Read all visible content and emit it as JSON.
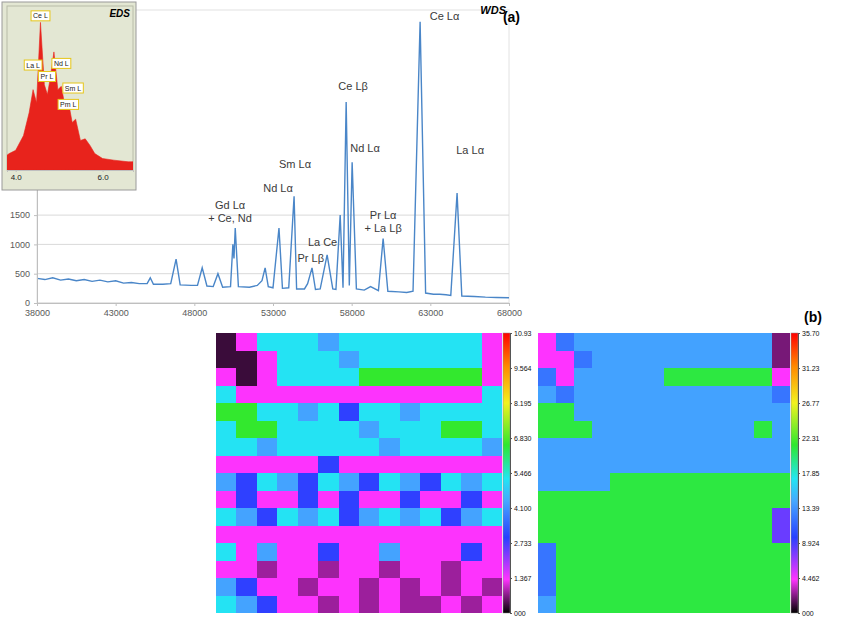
{
  "chart_data": [
    {
      "type": "line",
      "title": "WDS",
      "panel_label": "(a)",
      "x": [
        38000,
        38500,
        39000,
        39500,
        40000,
        40500,
        41000,
        41500,
        42000,
        42500,
        43000,
        43500,
        44000,
        44500,
        45000,
        45200,
        45400,
        46000,
        46500,
        46840,
        47100,
        47800,
        48200,
        48500,
        48800,
        49200,
        49500,
        49800,
        50300,
        50450,
        50520,
        50600,
        50800,
        51500,
        52000,
        52300,
        52500,
        52700,
        53000,
        53380,
        53600,
        54000,
        54340,
        54500,
        55000,
        55200,
        55480,
        55700,
        56000,
        56440,
        56800,
        57000,
        57270,
        57450,
        57650,
        57850,
        58030,
        58300,
        58800,
        59200,
        59700,
        60000,
        60300,
        61000,
        61500,
        61900,
        62350,
        62700,
        63200,
        63600,
        64000,
        64300,
        64700,
        65000,
        65800,
        66500,
        67200,
        68000
      ],
      "series": [
        {
          "color": "#4a86c8",
          "values": [
            420,
            400,
            430,
            390,
            410,
            380,
            400,
            370,
            390,
            360,
            380,
            340,
            350,
            330,
            330,
            430,
            320,
            320,
            330,
            750,
            310,
            300,
            300,
            600,
            290,
            280,
            500,
            270,
            280,
            1000,
            760,
            1280,
            280,
            270,
            300,
            380,
            600,
            280,
            260,
            1280,
            250,
            260,
            1820,
            240,
            240,
            330,
            600,
            230,
            240,
            820,
            240,
            230,
            1500,
            260,
            3430,
            300,
            2400,
            240,
            220,
            280,
            210,
            1100,
            200,
            190,
            180,
            200,
            4800,
            170,
            150,
            150,
            140,
            130,
            1875,
            120,
            110,
            100,
            95,
            90
          ]
        }
      ],
      "xlim": [
        38000,
        68000
      ],
      "xticks": [
        38000,
        43000,
        48000,
        53000,
        58000,
        63000,
        68000
      ],
      "ylim": [
        0,
        5000
      ],
      "yticks": [
        0,
        500,
        1000,
        1500
      ],
      "grid": true,
      "annotations": [
        {
          "text": [
            "Gd Lα",
            "+ Ce, Nd"
          ],
          "x": 50270,
          "y": 1380
        },
        {
          "text": "Nd Lα",
          "x": 53320,
          "y": 1893
        },
        {
          "text": "Sm Lα",
          "x": 54400,
          "y": 2300
        },
        {
          "text": "Pr Lβ",
          "x": 55400,
          "y": 700
        },
        {
          "text": "La Ce",
          "x": 56150,
          "y": 972
        },
        {
          "text": "Ce Lβ",
          "x": 58090,
          "y": 3632
        },
        {
          "text": "Nd Lα",
          "x": 58850,
          "y": 2575
        },
        {
          "text": [
            "Pr Lα",
            "+ La Lβ"
          ],
          "x": 60000,
          "y": 1210
        },
        {
          "text": "Ce Lα",
          "x": 63900,
          "y": 4825
        },
        {
          "text": "La Lα",
          "x": 65530,
          "y": 2540
        }
      ]
    },
    {
      "type": "area",
      "title": "EDS",
      "x": [
        3.8,
        3.85,
        4.0,
        4.18,
        4.31,
        4.4,
        4.48,
        4.57,
        4.66,
        4.73,
        4.79,
        4.88,
        4.97,
        5.05,
        5.14,
        5.21,
        5.3,
        5.38,
        5.49,
        5.6,
        5.71,
        5.82,
        6.0,
        6.26,
        6.59,
        6.7
      ],
      "series": [
        {
          "color": "#e8231c",
          "values": [
            9,
            10,
            12,
            21,
            35,
            49,
            41,
            90,
            52,
            46,
            55,
            72,
            49,
            51,
            38,
            42,
            29,
            31,
            18,
            19,
            15,
            10,
            7,
            6,
            5,
            5
          ]
        }
      ],
      "xlim": [
        3.8,
        6.7
      ],
      "xticks": [
        {
          "value": 4,
          "label": "4.0"
        },
        {
          "value": 6,
          "label": "6.0"
        }
      ],
      "ylim": [
        0,
        100
      ],
      "tick_labels": "x",
      "annotations": [
        {
          "text": "Ce L",
          "x": 4.57,
          "y": 94
        },
        {
          "text": "La L",
          "x": 4.4,
          "y": 64
        },
        {
          "text": "Pr L",
          "x": 4.72,
          "y": 57
        },
        {
          "text": "Nd L",
          "x": 5.05,
          "y": 65
        },
        {
          "text": "Sm L",
          "x": 5.32,
          "y": 50
        },
        {
          "text": "Pm L",
          "x": 5.21,
          "y": 40
        }
      ]
    },
    {
      "type": "heatmap",
      "tick_labels": false,
      "cells": [
        [
          0.3,
          1.3,
          5.2,
          5.2,
          5.2,
          4.3,
          5.2,
          5.2,
          5.2,
          5.2,
          5.2,
          5.2,
          5.2,
          1.3
        ],
        [
          0.3,
          0.3,
          1.3,
          5.2,
          5.2,
          5.2,
          4.3,
          5.2,
          5.2,
          5.2,
          5.2,
          5.2,
          5.2,
          1.3
        ],
        [
          1.3,
          0.3,
          1.3,
          5.2,
          5.2,
          5.2,
          5.2,
          6.6,
          6.6,
          6.6,
          6.6,
          6.6,
          6.6,
          1.3
        ],
        [
          5.2,
          1.3,
          1.3,
          1.3,
          1.3,
          1.3,
          1.3,
          1.3,
          1.3,
          1.3,
          1.3,
          1.3,
          1.3,
          5.2
        ],
        [
          6.6,
          6.6,
          5.2,
          5.2,
          4.3,
          5.2,
          2.9,
          5.2,
          5.2,
          4.3,
          5.2,
          5.2,
          5.2,
          5.2
        ],
        [
          5.2,
          6.6,
          6.6,
          5.2,
          5.2,
          5.2,
          5.2,
          4.3,
          5.2,
          5.2,
          5.2,
          6.6,
          6.6,
          5.2
        ],
        [
          5.2,
          5.2,
          4.3,
          5.2,
          5.2,
          5.2,
          5.2,
          5.2,
          4.3,
          5.2,
          5.2,
          5.2,
          5.2,
          4.3
        ],
        [
          1.3,
          1.3,
          1.3,
          1.3,
          1.3,
          2.9,
          1.3,
          1.3,
          1.3,
          1.3,
          1.3,
          1.3,
          1.3,
          1.3
        ],
        [
          4.3,
          2.9,
          5.2,
          4.3,
          2.9,
          5.2,
          4.3,
          2.9,
          5.2,
          4.3,
          2.9,
          5.2,
          4.3,
          5.2
        ],
        [
          1.3,
          2.9,
          1.3,
          1.3,
          2.9,
          1.3,
          2.9,
          1.3,
          1.3,
          2.9,
          1.3,
          1.3,
          2.9,
          1.3
        ],
        [
          5.2,
          4.3,
          2.9,
          5.2,
          4.3,
          5.2,
          2.9,
          4.3,
          5.2,
          4.3,
          5.2,
          2.9,
          4.3,
          5.2
        ],
        [
          1.3,
          1.3,
          1.3,
          1.3,
          1.3,
          1.3,
          1.3,
          1.3,
          1.3,
          1.3,
          1.3,
          1.3,
          1.3,
          1.3
        ],
        [
          5.2,
          1.3,
          4.3,
          1.3,
          1.3,
          2.9,
          1.3,
          1.3,
          4.3,
          1.3,
          1.3,
          1.3,
          2.9,
          1.3
        ],
        [
          1.3,
          1.3,
          0.8,
          1.3,
          1.3,
          0.8,
          1.3,
          1.3,
          0.8,
          1.3,
          1.3,
          0.8,
          1.3,
          1.3
        ],
        [
          4.3,
          2.9,
          1.3,
          1.3,
          0.8,
          1.3,
          1.3,
          0.8,
          1.3,
          0.8,
          1.3,
          0.8,
          1.3,
          0.8
        ],
        [
          5.2,
          4.3,
          2.9,
          1.3,
          1.3,
          0.8,
          1.3,
          0.8,
          1.3,
          0.8,
          0.8,
          1.3,
          0.8,
          1.3
        ]
      ],
      "colorbar": {
        "range": [
          0,
          10.93
        ],
        "ticks": [
          {
            "value": 0,
            "label": "000"
          },
          1.367,
          2.733,
          {
            "value": 4.1,
            "label": "4.100"
          },
          5.466,
          {
            "value": 6.83,
            "label": "6.830"
          },
          8.195,
          9.564,
          10.93
        ]
      }
    },
    {
      "type": "heatmap",
      "tick_labels": false,
      "panel_label": "(b)",
      "cells": [
        [
          4.3,
          12,
          14,
          14,
          14,
          14,
          14,
          14,
          14,
          14,
          14,
          14,
          14,
          2
        ],
        [
          4.3,
          4.3,
          12,
          14,
          14,
          14,
          14,
          14,
          14,
          14,
          14,
          14,
          14,
          2
        ],
        [
          12,
          4.3,
          14,
          14,
          14,
          14,
          14,
          21,
          21,
          21,
          21,
          21,
          21,
          4.3
        ],
        [
          14,
          12,
          14,
          14,
          14,
          14,
          14,
          14,
          14,
          14,
          14,
          14,
          14,
          12
        ],
        [
          21,
          21,
          14,
          14,
          14,
          14,
          14,
          14,
          14,
          14,
          14,
          14,
          14,
          14
        ],
        [
          21,
          21,
          21,
          14,
          14,
          14,
          14,
          14,
          14,
          14,
          14,
          14,
          21,
          14
        ],
        [
          14,
          14,
          14,
          14,
          14,
          14,
          14,
          14,
          14,
          14,
          14,
          14,
          14,
          14
        ],
        [
          14,
          14,
          14,
          14,
          14,
          14,
          14,
          14,
          14,
          14,
          14,
          14,
          14,
          14
        ],
        [
          14,
          14,
          14,
          14,
          21,
          21,
          21,
          21,
          21,
          21,
          21,
          21,
          21,
          21
        ],
        [
          21,
          21,
          21,
          21,
          21,
          21,
          21,
          21,
          21,
          21,
          21,
          21,
          21,
          21
        ],
        [
          21,
          21,
          21,
          21,
          21,
          21,
          21,
          21,
          21,
          21,
          21,
          21,
          21,
          8
        ],
        [
          21,
          21,
          21,
          21,
          21,
          21,
          21,
          21,
          21,
          21,
          21,
          21,
          21,
          8
        ],
        [
          12,
          21,
          21,
          21,
          21,
          21,
          21,
          21,
          21,
          21,
          21,
          21,
          21,
          21
        ],
        [
          12,
          21,
          21,
          21,
          21,
          21,
          21,
          21,
          21,
          21,
          21,
          21,
          21,
          21
        ],
        [
          12,
          21,
          21,
          21,
          21,
          21,
          21,
          21,
          21,
          21,
          21,
          21,
          21,
          21
        ],
        [
          14,
          21,
          21,
          21,
          21,
          21,
          21,
          21,
          21,
          21,
          21,
          21,
          21,
          21
        ]
      ],
      "colorbar": {
        "range": [
          0,
          35.7
        ],
        "ticks": [
          {
            "value": 0,
            "label": "000"
          },
          4.462,
          8.924,
          13.39,
          17.85,
          22.31,
          26.77,
          31.23,
          {
            "value": 35.7,
            "label": "35.70"
          }
        ]
      }
    }
  ]
}
